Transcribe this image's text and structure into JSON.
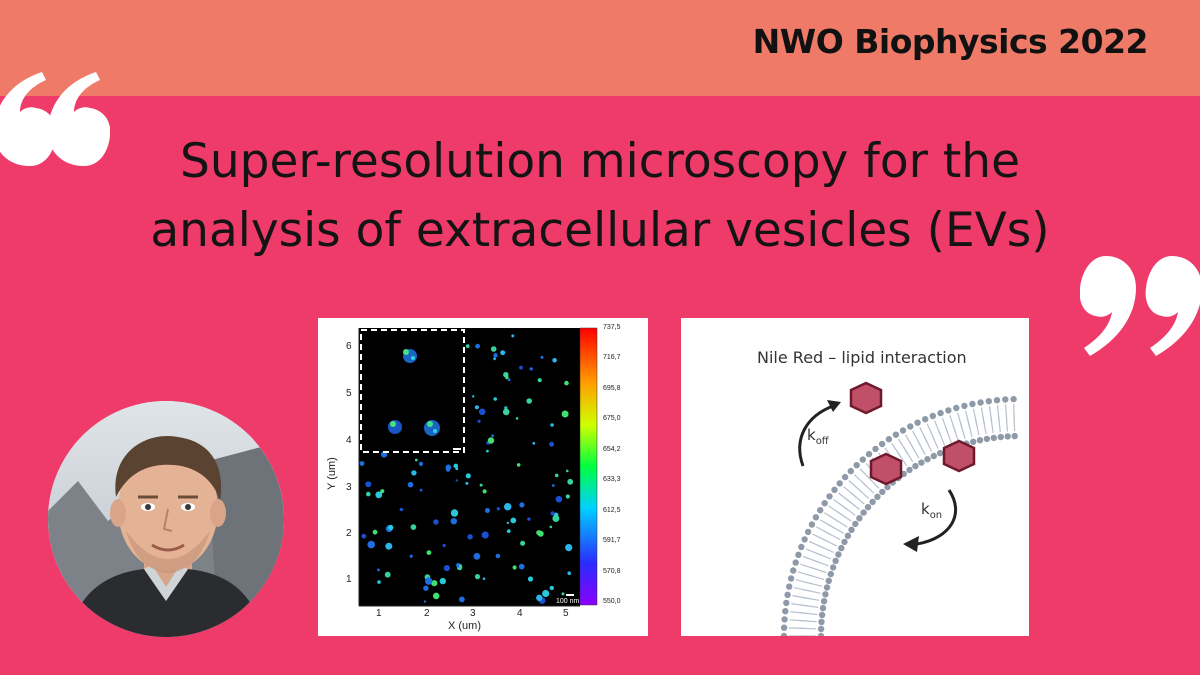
{
  "header": {
    "event": "NWO Biophysics 2022",
    "bar_color": "#f07a68"
  },
  "background_color": "#ee3b69",
  "title": {
    "line1": "Super-resolution microscopy for the",
    "line2": "analysis of extracellular vesicles (EVs)"
  },
  "quote_marks": {
    "open_icon": "open-quote-icon",
    "close_icon": "close-quote-icon",
    "color": "#ffffff"
  },
  "speaker_photo": {
    "icon": "speaker-portrait"
  },
  "microscopy_panel": {
    "x_axis_label": "X (um)",
    "y_axis_label": "Y (um)",
    "x_ticks": [
      "1",
      "2",
      "3",
      "4",
      "5"
    ],
    "y_ticks": [
      "1",
      "2",
      "3",
      "4",
      "5",
      "6"
    ],
    "colorbar_ticks": [
      "737,5",
      "716,7",
      "695,8",
      "675,0",
      "654,2",
      "633,3",
      "612,5",
      "591,7",
      "570,8",
      "550,0"
    ],
    "scale_bar": "100 nm"
  },
  "diagram_panel": {
    "title": "Nile Red – lipid interaction",
    "k_off": "k",
    "k_off_sub": "off",
    "k_on": "k",
    "k_on_sub": "on"
  }
}
